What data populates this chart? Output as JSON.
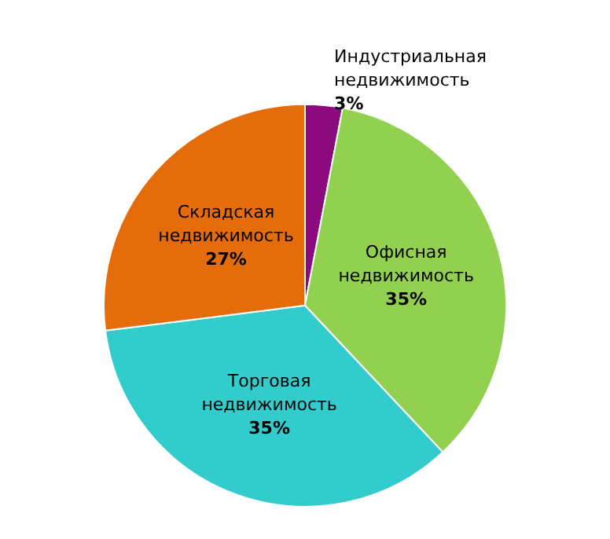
{
  "chart_data": {
    "type": "pie",
    "categories": [
      "Индустриальная\nнедвижимость",
      "Офисная\nнедвижимость",
      "Торговая\nнедвижимость",
      "Складская\nнедвижимость"
    ],
    "values": [
      3,
      35,
      35,
      27
    ],
    "colors": [
      "#8b0a7e",
      "#92d050",
      "#33cccc",
      "#e46c0a"
    ],
    "value_labels": [
      "3%",
      "35%",
      "35%",
      "27%"
    ],
    "legend": false
  }
}
